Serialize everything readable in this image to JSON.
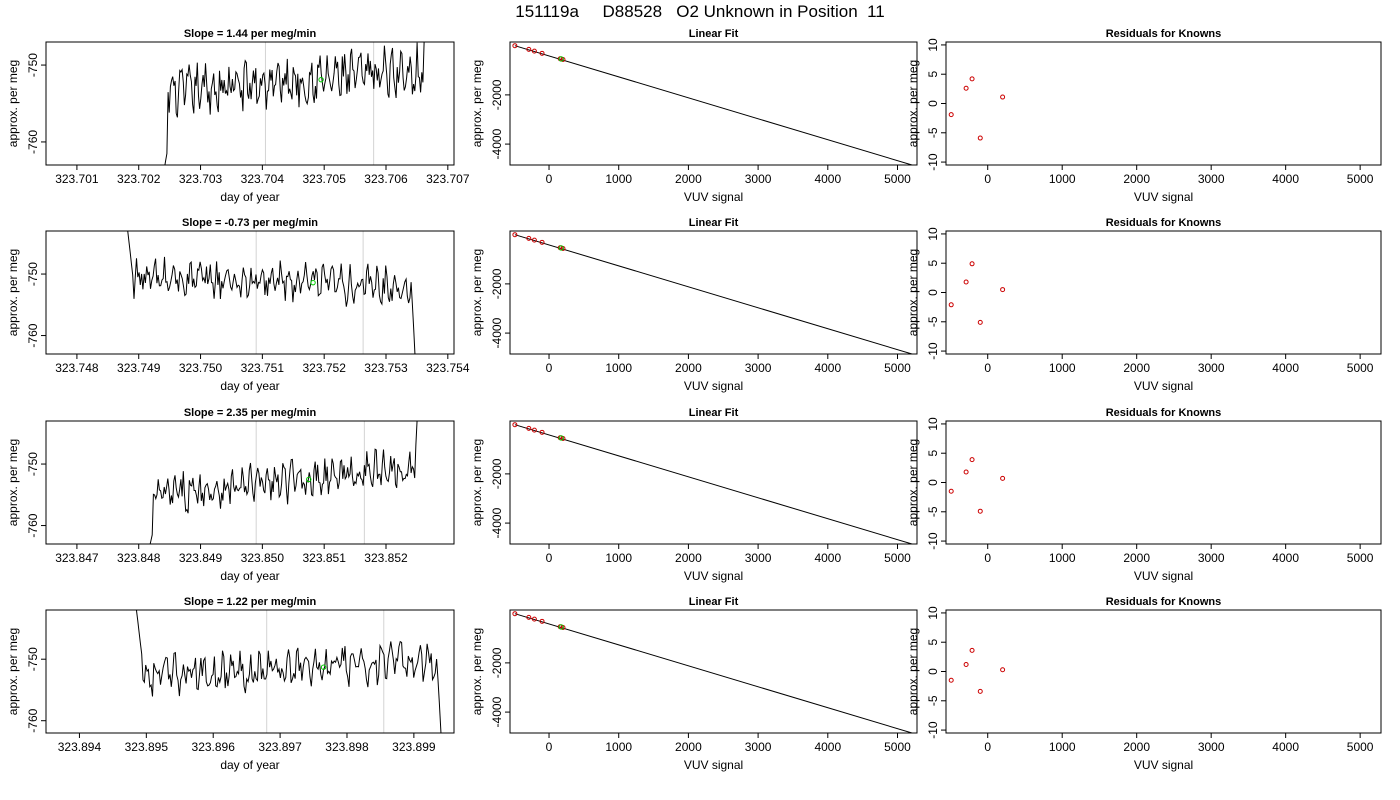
{
  "title": "151119a     D88528   O2 Unknown in Position  11",
  "panel_titles": {
    "slope_prefix": "Slope = ",
    "slope_suffix": " per meg/min",
    "linear": "Linear Fit",
    "residuals": "Residuals for Knowns"
  },
  "colors": {
    "line": "#000000",
    "marker_line": "#d3d3d3",
    "unknown_point": "#00cc00",
    "known_point": "#cc0000"
  },
  "chart_data": [
    {
      "type": "line",
      "row": 1,
      "panel": "timeseries",
      "title": "Slope =  1.44  per meg/min",
      "slope": "1.44",
      "xlabel": "day of year",
      "ylabel": "approx. per meg",
      "xlim": [
        323.7005,
        323.7071
      ],
      "ylim": [
        -763,
        -747
      ],
      "x_ticks": [
        "323.701",
        "323.702",
        "323.703",
        "323.704",
        "323.705",
        "323.706",
        "323.707"
      ],
      "y_ticks": [
        -760,
        -750
      ],
      "start_x": 323.70238,
      "end_x": 323.70673,
      "markers_x": [
        323.70405,
        323.7058
      ],
      "unknown_point": {
        "x": 323.70495,
        "y": -751.9
      }
    },
    {
      "type": "line",
      "row": 1,
      "panel": "linear_fit",
      "title": "Linear Fit",
      "xlabel": "VUV signal",
      "ylabel": "approx. per meg",
      "xlim": [
        -560,
        5280
      ],
      "ylim": [
        -4850,
        150
      ],
      "x_ticks": [
        0,
        1000,
        2000,
        3000,
        4000,
        5000
      ],
      "y_ticks": [
        -2000,
        -4000
      ],
      "fit_line": [
        [
          -490,
          0
        ],
        [
          5220,
          -4860
        ]
      ],
      "known_points": [
        [
          -490,
          0
        ],
        [
          -290,
          -150
        ],
        [
          -210,
          -220
        ],
        [
          -100,
          -310
        ],
        [
          160,
          -530
        ],
        [
          200,
          -560
        ]
      ],
      "unknown_point": [
        175,
        -540
      ]
    },
    {
      "type": "scatter",
      "row": 1,
      "panel": "residuals",
      "title": "Residuals for Knowns",
      "xlabel": "VUV signal",
      "ylabel": "approx. per meg",
      "xlim": [
        -560,
        5280
      ],
      "ylim": [
        -10.5,
        10.5
      ],
      "x_ticks": [
        0,
        1000,
        2000,
        3000,
        4000,
        5000
      ],
      "y_ticks": [
        -10,
        -5,
        0,
        5,
        10
      ],
      "points": [
        [
          -490,
          -1.9
        ],
        [
          -290,
          2.6
        ],
        [
          -210,
          4.2
        ],
        [
          -100,
          -5.9
        ],
        [
          200,
          1.1
        ]
      ]
    },
    {
      "type": "line",
      "row": 2,
      "panel": "timeseries",
      "title": "Slope =  -0.73  per meg/min",
      "slope": "-0.73",
      "xlabel": "day of year",
      "ylabel": "approx. per meg",
      "xlim": [
        323.7475,
        323.7541
      ],
      "ylim": [
        -763,
        -743
      ],
      "x_ticks": [
        "323.748",
        "323.749",
        "323.750",
        "323.751",
        "323.752",
        "323.753",
        "323.754"
      ],
      "y_ticks": [
        -760,
        -750
      ],
      "start_x": 323.7488,
      "end_x": 323.75353,
      "markers_x": [
        323.7509,
        323.75263
      ],
      "unknown_point": {
        "x": 323.75182,
        "y": -751.4
      }
    },
    {
      "type": "line",
      "row": 2,
      "panel": "linear_fit",
      "title": "Linear Fit",
      "xlabel": "VUV signal",
      "ylabel": "approx. per meg",
      "xlim": [
        -560,
        5280
      ],
      "ylim": [
        -4850,
        150
      ],
      "x_ticks": [
        0,
        1000,
        2000,
        3000,
        4000,
        5000
      ],
      "y_ticks": [
        -2000,
        -4000
      ],
      "fit_line": [
        [
          -490,
          0
        ],
        [
          5220,
          -4860
        ]
      ],
      "known_points": [
        [
          -490,
          0
        ],
        [
          -290,
          -150
        ],
        [
          -210,
          -220
        ],
        [
          -100,
          -310
        ],
        [
          160,
          -530
        ],
        [
          200,
          -560
        ]
      ],
      "unknown_point": [
        175,
        -540
      ]
    },
    {
      "type": "scatter",
      "row": 2,
      "panel": "residuals",
      "title": "Residuals for Knowns",
      "xlabel": "VUV signal",
      "ylabel": "approx. per meg",
      "xlim": [
        -560,
        5280
      ],
      "ylim": [
        -10.5,
        10.5
      ],
      "x_ticks": [
        0,
        1000,
        2000,
        3000,
        4000,
        5000
      ],
      "y_ticks": [
        -10,
        -5,
        0,
        5,
        10
      ],
      "points": [
        [
          -490,
          -2.1
        ],
        [
          -290,
          1.8
        ],
        [
          -210,
          4.9
        ],
        [
          -100,
          -5.1
        ],
        [
          200,
          0.5
        ]
      ]
    },
    {
      "type": "line",
      "row": 3,
      "panel": "timeseries",
      "title": "Slope =  2.35  per meg/min",
      "slope": "2.35",
      "xlabel": "day of year",
      "ylabel": "approx. per meg",
      "xlim": [
        323.8465,
        323.8531
      ],
      "ylim": [
        -763,
        -743
      ],
      "x_ticks": [
        "323.847",
        "323.848",
        "323.849",
        "323.850",
        "323.851",
        "323.852"
      ],
      "y_ticks": [
        -760,
        -750
      ],
      "start_x": 323.84814,
      "end_x": 323.8526,
      "markers_x": [
        323.8499,
        323.85165
      ],
      "unknown_point": {
        "x": 323.85075,
        "y": -752.5
      }
    },
    {
      "type": "line",
      "row": 3,
      "panel": "linear_fit",
      "title": "Linear Fit",
      "xlabel": "VUV signal",
      "ylabel": "approx. per meg",
      "xlim": [
        -560,
        5280
      ],
      "ylim": [
        -4850,
        150
      ],
      "x_ticks": [
        0,
        1000,
        2000,
        3000,
        4000,
        5000
      ],
      "y_ticks": [
        -2000,
        -4000
      ],
      "fit_line": [
        [
          -490,
          0
        ],
        [
          5220,
          -4860
        ]
      ],
      "known_points": [
        [
          -490,
          0
        ],
        [
          -290,
          -150
        ],
        [
          -210,
          -220
        ],
        [
          -100,
          -310
        ],
        [
          160,
          -530
        ],
        [
          200,
          -560
        ]
      ],
      "unknown_point": [
        175,
        -540
      ]
    },
    {
      "type": "scatter",
      "row": 3,
      "panel": "residuals",
      "title": "Residuals for Knowns",
      "xlabel": "VUV signal",
      "ylabel": "approx. per meg",
      "xlim": [
        -560,
        5280
      ],
      "ylim": [
        -10.5,
        10.5
      ],
      "x_ticks": [
        0,
        1000,
        2000,
        3000,
        4000,
        5000
      ],
      "y_ticks": [
        -10,
        -5,
        0,
        5,
        10
      ],
      "points": [
        [
          -490,
          -1.5
        ],
        [
          -290,
          1.8
        ],
        [
          -210,
          3.9
        ],
        [
          -100,
          -4.9
        ],
        [
          200,
          0.7
        ]
      ]
    },
    {
      "type": "line",
      "row": 4,
      "panel": "timeseries",
      "title": "Slope =  1.22  per meg/min",
      "slope": "1.22",
      "xlabel": "day of year",
      "ylabel": "approx. per meg",
      "xlim": [
        323.8935,
        323.8996
      ],
      "ylim": [
        -762,
        -742
      ],
      "x_ticks": [
        "323.894",
        "323.895",
        "323.896",
        "323.897",
        "323.898",
        "323.899"
      ],
      "y_ticks": [
        -760,
        -750
      ],
      "start_x": 323.89483,
      "end_x": 323.89946,
      "markers_x": [
        323.8968,
        323.89855
      ],
      "unknown_point": {
        "x": 323.89765,
        "y": -751.3
      }
    },
    {
      "type": "line",
      "row": 4,
      "panel": "linear_fit",
      "title": "Linear Fit",
      "xlabel": "VUV signal",
      "ylabel": "approx. per meg",
      "xlim": [
        -560,
        5280
      ],
      "ylim": [
        -4850,
        150
      ],
      "x_ticks": [
        0,
        1000,
        2000,
        3000,
        4000,
        5000
      ],
      "y_ticks": [
        -2000,
        -4000
      ],
      "fit_line": [
        [
          -490,
          0
        ],
        [
          5220,
          -4860
        ]
      ],
      "known_points": [
        [
          -490,
          0
        ],
        [
          -290,
          -150
        ],
        [
          -210,
          -220
        ],
        [
          -100,
          -310
        ],
        [
          160,
          -530
        ],
        [
          200,
          -560
        ]
      ],
      "unknown_point": [
        175,
        -540
      ]
    },
    {
      "type": "scatter",
      "row": 4,
      "panel": "residuals",
      "title": "Residuals for Knowns",
      "xlabel": "VUV signal",
      "ylabel": "approx. per meg",
      "xlim": [
        -560,
        5280
      ],
      "ylim": [
        -10.5,
        10.5
      ],
      "x_ticks": [
        0,
        1000,
        2000,
        3000,
        4000,
        5000
      ],
      "y_ticks": [
        -10,
        -5,
        0,
        5,
        10
      ],
      "points": [
        [
          -490,
          -1.5
        ],
        [
          -290,
          1.2
        ],
        [
          -210,
          3.6
        ],
        [
          -100,
          -3.4
        ],
        [
          200,
          0.3
        ]
      ]
    }
  ]
}
